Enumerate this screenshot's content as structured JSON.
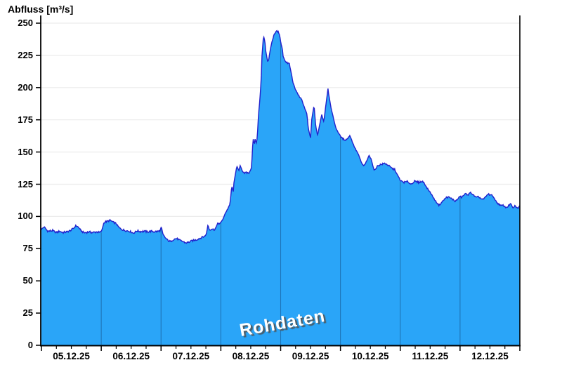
{
  "title": "Abfluss [m³/s]",
  "watermark": "Rohdaten",
  "chart_data": {
    "type": "area",
    "title": "Abfluss [m³/s]",
    "ylabel": "Abfluss [m³/s]",
    "xlabel": "",
    "legend": "none",
    "grid": "horizontal",
    "categories": [
      "05.12.25",
      "06.12.25",
      "07.12.25",
      "08.12.25",
      "09.12.25",
      "10.12.25",
      "11.12.25",
      "12.12.25"
    ],
    "yticks": [
      0,
      25,
      50,
      75,
      100,
      125,
      150,
      175,
      200,
      225,
      250
    ],
    "ylim": [
      0,
      256
    ],
    "xlim_hours": [
      0,
      192
    ],
    "x_unit": "hours since 05.12.25 00:00",
    "minor_tick_hours": 6,
    "noise": 0.9,
    "colors": {
      "fill": "#2AA5F8",
      "line": "#2121CC",
      "day_divider": "#1E74B8",
      "grid": "#ECECEC",
      "axis": "#000000",
      "background": "#FFFFFF",
      "watermark_text": "#FFFFFF",
      "watermark_shadow": "#555555"
    },
    "series": [
      {
        "name": "Abfluss Rohdaten",
        "points": [
          [
            0,
            90
          ],
          [
            1.1,
            92
          ],
          [
            2.5,
            88.5
          ],
          [
            4.5,
            89
          ],
          [
            5.9,
            87.5
          ],
          [
            7.3,
            88.5
          ],
          [
            8.7,
            87.5
          ],
          [
            10.1,
            88
          ],
          [
            11.6,
            89
          ],
          [
            13,
            91
          ],
          [
            13.8,
            93
          ],
          [
            14.9,
            91.5
          ],
          [
            16.1,
            88.5
          ],
          [
            17.2,
            87.3
          ],
          [
            18.9,
            88
          ],
          [
            20.6,
            87.5
          ],
          [
            22.3,
            88
          ],
          [
            23.4,
            87.5
          ],
          [
            24.2,
            89
          ],
          [
            25.1,
            95.5
          ],
          [
            26.2,
            96
          ],
          [
            27.6,
            97
          ],
          [
            28.8,
            95.5
          ],
          [
            29.9,
            94.6
          ],
          [
            31.3,
            91
          ],
          [
            32.7,
            89.5
          ],
          [
            34.1,
            89
          ],
          [
            35.5,
            88.5
          ],
          [
            36.9,
            87
          ],
          [
            38.3,
            88.8
          ],
          [
            39.8,
            88.3
          ],
          [
            41.2,
            88.6
          ],
          [
            42.6,
            88
          ],
          [
            44,
            88.5
          ],
          [
            45.4,
            88.2
          ],
          [
            46.8,
            88.4
          ],
          [
            47.6,
            89
          ],
          [
            48.1,
            92
          ],
          [
            48.8,
            86
          ],
          [
            49.6,
            83.7
          ],
          [
            51,
            81
          ],
          [
            51.9,
            80.5
          ],
          [
            53.3,
            82.5
          ],
          [
            54.4,
            82.8
          ],
          [
            55.5,
            81.5
          ],
          [
            56.7,
            80.6
          ],
          [
            57.8,
            79.5
          ],
          [
            58.9,
            79.8
          ],
          [
            60.3,
            81
          ],
          [
            62.3,
            82
          ],
          [
            64.3,
            83.7
          ],
          [
            65.7,
            84.8
          ],
          [
            66.3,
            87.3
          ],
          [
            66.8,
            93.7
          ],
          [
            67.4,
            89.5
          ],
          [
            68.5,
            90.5
          ],
          [
            69.4,
            89.5
          ],
          [
            70.2,
            92
          ],
          [
            70.8,
            95.5
          ],
          [
            71.3,
            93.5
          ],
          [
            72.2,
            96.4
          ],
          [
            72.7,
            97
          ],
          [
            73.6,
            101.9
          ],
          [
            74.4,
            104.6
          ],
          [
            75.6,
            109
          ],
          [
            75.8,
            112.7
          ],
          [
            76.4,
            123.6
          ],
          [
            77,
            119.1
          ],
          [
            77.2,
            125.4
          ],
          [
            77.8,
            132.7
          ],
          [
            78.4,
            139
          ],
          [
            79.2,
            135.4
          ],
          [
            79.8,
            139.6
          ],
          [
            80.6,
            135.4
          ],
          [
            81.5,
            133.6
          ],
          [
            82.6,
            133.8
          ],
          [
            83.5,
            134
          ],
          [
            84.3,
            138.2
          ],
          [
            84.6,
            148
          ],
          [
            84.9,
            161
          ],
          [
            85.4,
            155.4
          ],
          [
            85.7,
            160
          ],
          [
            86.3,
            157
          ],
          [
            86.6,
            161
          ],
          [
            87.1,
            179
          ],
          [
            87.7,
            191.7
          ],
          [
            88.2,
            206.3
          ],
          [
            88.5,
            224.4
          ],
          [
            89.1,
            240.4
          ],
          [
            89.7,
            236
          ],
          [
            89.9,
            230
          ],
          [
            90.5,
            223
          ],
          [
            90.8,
            220
          ],
          [
            91.3,
            222.7
          ],
          [
            91.9,
            230
          ],
          [
            92.5,
            235.3
          ],
          [
            93.3,
            240.7
          ],
          [
            93.9,
            242.6
          ],
          [
            94.4,
            244
          ],
          [
            95,
            243.5
          ],
          [
            95.6,
            240.7
          ],
          [
            96.1,
            234.4
          ],
          [
            96.7,
            229.8
          ],
          [
            97,
            224.4
          ],
          [
            97.6,
            221.7
          ],
          [
            98.1,
            219.5
          ],
          [
            99.5,
            218.5
          ],
          [
            99.8,
            215.3
          ],
          [
            100.4,
            209.9
          ],
          [
            100.9,
            204.4
          ],
          [
            101.8,
            199
          ],
          [
            103.2,
            194
          ],
          [
            104.6,
            190
          ],
          [
            105.4,
            185.4
          ],
          [
            106.6,
            179
          ],
          [
            107.1,
            168.1
          ],
          [
            108,
            160.9
          ],
          [
            108.5,
            175.4
          ],
          [
            109.4,
            186.3
          ],
          [
            110,
            171.7
          ],
          [
            110.8,
            162.7
          ],
          [
            111.6,
            170.8
          ],
          [
            112.5,
            179
          ],
          [
            113.3,
            173.6
          ],
          [
            113.9,
            182.6
          ],
          [
            114.5,
            191.7
          ],
          [
            115,
            199.3
          ],
          [
            115.3,
            194.4
          ],
          [
            115.9,
            188.1
          ],
          [
            116.4,
            182.6
          ],
          [
            117.3,
            175.4
          ],
          [
            118.1,
            169
          ],
          [
            119.3,
            164.5
          ],
          [
            120.1,
            162
          ],
          [
            121,
            160
          ],
          [
            122.1,
            159.5
          ],
          [
            122.9,
            160.5
          ],
          [
            123.8,
            163
          ],
          [
            124.9,
            157.2
          ],
          [
            125.7,
            153.6
          ],
          [
            127.2,
            148.1
          ],
          [
            128.6,
            140.9
          ],
          [
            129.4,
            139.1
          ],
          [
            130.5,
            142.7
          ],
          [
            131.4,
            147.2
          ],
          [
            132.2,
            145.4
          ],
          [
            133.3,
            137.3
          ],
          [
            133.6,
            135.5
          ],
          [
            134.8,
            139.1
          ],
          [
            135.6,
            140
          ],
          [
            136.7,
            140.5
          ],
          [
            137.9,
            141.2
          ],
          [
            139.3,
            139.5
          ],
          [
            140.7,
            137.3
          ],
          [
            141.8,
            136.3
          ],
          [
            142.7,
            132.7
          ],
          [
            143.5,
            130
          ],
          [
            144.1,
            127.5
          ],
          [
            145.5,
            126.5
          ],
          [
            146.9,
            127
          ],
          [
            148.3,
            125
          ],
          [
            149.7,
            127.2
          ],
          [
            151.1,
            126.5
          ],
          [
            152.5,
            127
          ],
          [
            153.4,
            126.8
          ],
          [
            154.5,
            122.7
          ],
          [
            155.9,
            119.1
          ],
          [
            157.3,
            114.6
          ],
          [
            158.2,
            111.8
          ],
          [
            159.6,
            108.6
          ],
          [
            161,
            111.8
          ],
          [
            162.4,
            114.6
          ],
          [
            163.2,
            115.1
          ],
          [
            164.7,
            113.7
          ],
          [
            166.1,
            111.8
          ],
          [
            167.2,
            113.7
          ],
          [
            168,
            115.8
          ],
          [
            168.6,
            114.6
          ],
          [
            169.4,
            116.4
          ],
          [
            170.3,
            117.6
          ],
          [
            171.4,
            117
          ],
          [
            172.3,
            118.6
          ],
          [
            173.1,
            117
          ],
          [
            174.5,
            114.6
          ],
          [
            175.6,
            115.1
          ],
          [
            176.5,
            113.7
          ],
          [
            177.3,
            113.1
          ],
          [
            178.5,
            115.8
          ],
          [
            179.3,
            117.3
          ],
          [
            180.1,
            117
          ],
          [
            181.3,
            115.5
          ],
          [
            182.7,
            111
          ],
          [
            183.5,
            109.6
          ],
          [
            184.4,
            108.2
          ],
          [
            185.5,
            108.6
          ],
          [
            186.3,
            106.8
          ],
          [
            187.2,
            107.8
          ],
          [
            188.3,
            110
          ],
          [
            189.2,
            106.3
          ],
          [
            190,
            108.2
          ],
          [
            191.1,
            106.3
          ],
          [
            192,
            108
          ]
        ]
      }
    ]
  }
}
